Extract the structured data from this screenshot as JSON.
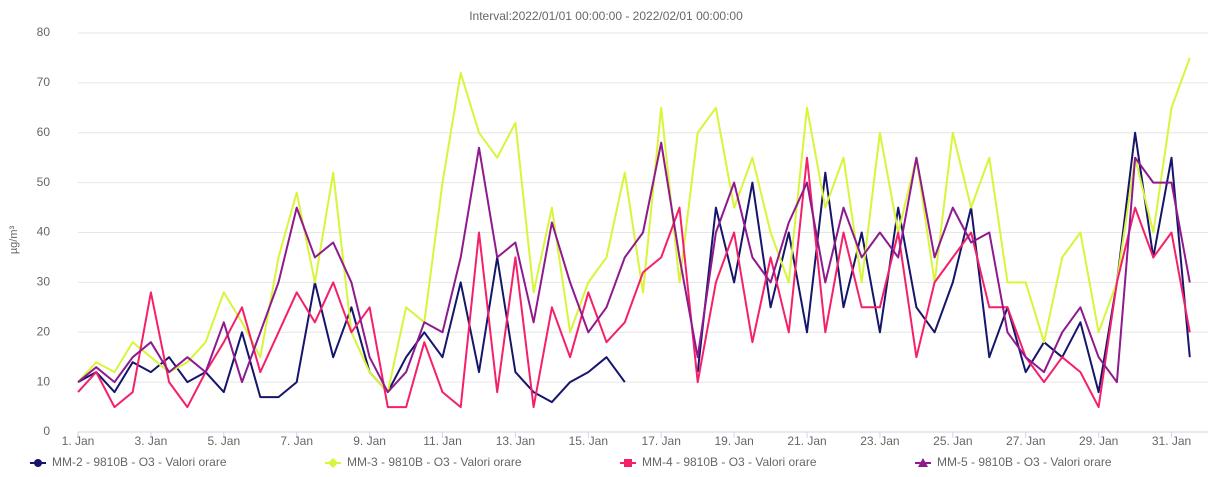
{
  "chart_data": {
    "type": "line",
    "title": "Interval:2022/01/01 00:00:00 - 2022/02/01 00:00:00",
    "y_label": "µg/m³",
    "x": [
      1,
      1.5,
      2,
      2.5,
      3,
      3.5,
      4,
      4.5,
      5,
      5.5,
      6,
      6.5,
      7,
      7.5,
      8,
      8.5,
      9,
      9.5,
      10,
      10.5,
      11,
      11.5,
      12,
      12.5,
      13,
      13.5,
      14,
      14.5,
      15,
      15.5,
      16,
      16.5,
      17,
      17.5,
      18,
      18.5,
      19,
      19.5,
      20,
      20.5,
      21,
      21.5,
      22,
      22.5,
      23,
      23.5,
      24,
      24.5,
      25,
      25.5,
      26,
      26.5,
      27,
      27.5,
      28,
      28.5,
      29,
      29.5,
      30,
      30.5,
      31,
      31.5
    ],
    "xlim": [
      1,
      32
    ],
    "xticks": [
      {
        "value": 1,
        "label": "1. Jan"
      },
      {
        "value": 3,
        "label": "3. Jan"
      },
      {
        "value": 5,
        "label": "5. Jan"
      },
      {
        "value": 7,
        "label": "7. Jan"
      },
      {
        "value": 9,
        "label": "9. Jan"
      },
      {
        "value": 11,
        "label": "11. Jan"
      },
      {
        "value": 13,
        "label": "13. Jan"
      },
      {
        "value": 15,
        "label": "15. Jan"
      },
      {
        "value": 17,
        "label": "17. Jan"
      },
      {
        "value": 19,
        "label": "19. Jan"
      },
      {
        "value": 21,
        "label": "21. Jan"
      },
      {
        "value": 23,
        "label": "23. Jan"
      },
      {
        "value": 25,
        "label": "25. Jan"
      },
      {
        "value": 27,
        "label": "27. Jan"
      },
      {
        "value": 29,
        "label": "29. Jan"
      },
      {
        "value": 31,
        "label": "31. Jan"
      }
    ],
    "ylim": [
      0,
      80
    ],
    "yticks": [
      0,
      10,
      20,
      30,
      40,
      50,
      60,
      70,
      80
    ],
    "grid": true,
    "legend": "bottom",
    "series": [
      {
        "name": "MM-2 - 9810B - O3 - Valori orare",
        "color": "#15156b",
        "values": [
          10,
          12,
          8,
          14,
          12,
          15,
          10,
          12,
          8,
          20,
          7,
          7,
          10,
          30,
          15,
          25,
          12,
          8,
          15,
          20,
          15,
          30,
          12,
          35,
          12,
          8,
          6,
          10,
          12,
          15,
          10,
          null,
          null,
          null,
          12,
          45,
          30,
          50,
          25,
          40,
          20,
          52,
          25,
          40,
          20,
          45,
          25,
          20,
          30,
          45,
          15,
          25,
          12,
          18,
          15,
          22,
          8,
          30,
          60,
          35,
          55,
          15
        ]
      },
      {
        "name": "MM-3 - 9810B - O3 - Valori orare",
        "color": "#d9f53a",
        "values": [
          10,
          14,
          12,
          18,
          15,
          12,
          14,
          18,
          28,
          22,
          15,
          35,
          48,
          30,
          52,
          20,
          12,
          8,
          25,
          22,
          50,
          72,
          60,
          55,
          62,
          28,
          45,
          20,
          30,
          35,
          52,
          28,
          65,
          30,
          60,
          65,
          45,
          55,
          40,
          30,
          65,
          45,
          55,
          30,
          60,
          40,
          55,
          30,
          60,
          45,
          55,
          30,
          30,
          18,
          35,
          40,
          20,
          30,
          55,
          40,
          65,
          75
        ]
      },
      {
        "name": "MM-4 - 9810B - O3 - Valori orare",
        "color": "#f5206a",
        "values": [
          8,
          12,
          5,
          8,
          28,
          10,
          5,
          12,
          18,
          25,
          12,
          20,
          28,
          22,
          30,
          20,
          25,
          5,
          5,
          18,
          8,
          5,
          40,
          8,
          35,
          5,
          25,
          15,
          28,
          18,
          22,
          32,
          35,
          45,
          10,
          30,
          40,
          18,
          35,
          20,
          55,
          20,
          40,
          25,
          25,
          40,
          15,
          30,
          35,
          40,
          25,
          25,
          15,
          10,
          15,
          12,
          5,
          30,
          45,
          35,
          40,
          20
        ]
      },
      {
        "name": "MM-5 - 9810B - O3 - Valori orare",
        "color": "#8e1a8e",
        "values": [
          10,
          13,
          10,
          15,
          18,
          12,
          15,
          12,
          22,
          10,
          20,
          30,
          45,
          35,
          38,
          30,
          15,
          8,
          12,
          22,
          20,
          35,
          57,
          35,
          38,
          22,
          42,
          30,
          20,
          25,
          35,
          40,
          58,
          35,
          15,
          40,
          50,
          35,
          30,
          42,
          50,
          30,
          45,
          35,
          40,
          35,
          55,
          35,
          45,
          38,
          40,
          20,
          15,
          12,
          20,
          25,
          15,
          10,
          55,
          50,
          50,
          30
        ]
      }
    ]
  }
}
